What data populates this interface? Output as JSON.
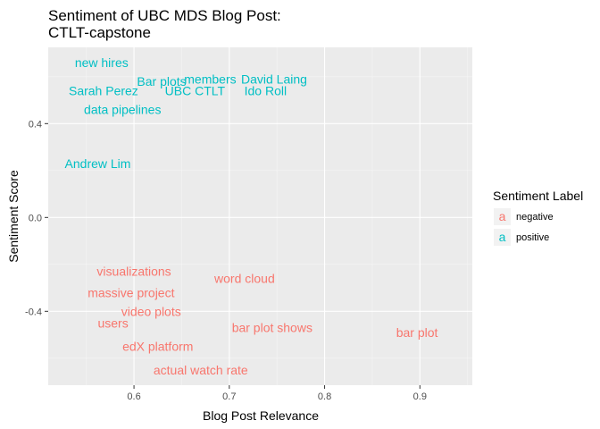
{
  "chart_data": {
    "type": "scatter",
    "title": [
      "Sentiment of UBC MDS Blog Post:",
      "CTLT-capstone"
    ],
    "xlabel": "Blog Post Relevance",
    "ylabel": "Sentiment Score",
    "xlim": [
      0.51,
      0.955
    ],
    "ylim": [
      -0.715,
      0.725
    ],
    "x_ticks": [
      0.6,
      0.7,
      0.8,
      0.9
    ],
    "x_tick_labels": [
      "0.6",
      "0.7",
      "0.8",
      "0.9"
    ],
    "y_ticks": [
      -0.4,
      0.0,
      0.4
    ],
    "y_tick_labels": [
      "-0.4",
      "0.0",
      "0.4"
    ],
    "grid": true,
    "legend": {
      "title": "Sentiment Label",
      "position": "right",
      "key_glyph": "a",
      "entries": [
        {
          "label": "negative",
          "color": "#F8766D"
        },
        {
          "label": "positive",
          "color": "#00BFC4"
        }
      ]
    },
    "series": [
      {
        "name": "negative",
        "color": "#F8766D",
        "points": [
          {
            "label": "visualizations",
            "x": 0.6,
            "y": -0.23
          },
          {
            "label": "massive project",
            "x": 0.597,
            "y": -0.32
          },
          {
            "label": "video plots",
            "x": 0.618,
            "y": -0.4
          },
          {
            "label": "users",
            "x": 0.578,
            "y": -0.45
          },
          {
            "label": "edX platform",
            "x": 0.625,
            "y": -0.55
          },
          {
            "label": "actual watch rate",
            "x": 0.67,
            "y": -0.65
          },
          {
            "label": "word cloud",
            "x": 0.716,
            "y": -0.26
          },
          {
            "label": "bar plot shows",
            "x": 0.745,
            "y": -0.47
          },
          {
            "label": "bar plot",
            "x": 0.897,
            "y": -0.49
          }
        ]
      },
      {
        "name": "positive",
        "color": "#00BFC4",
        "points": [
          {
            "label": "new hires",
            "x": 0.566,
            "y": 0.66
          },
          {
            "label": "Bar plots",
            "x": 0.629,
            "y": 0.58
          },
          {
            "label": "members",
            "x": 0.68,
            "y": 0.59
          },
          {
            "label": "David Laing",
            "x": 0.747,
            "y": 0.59
          },
          {
            "label": "Sarah Perez",
            "x": 0.568,
            "y": 0.54
          },
          {
            "label": "UBC CTLT",
            "x": 0.664,
            "y": 0.54
          },
          {
            "label": "Ido Roll",
            "x": 0.738,
            "y": 0.54
          },
          {
            "label": "data pipelines",
            "x": 0.588,
            "y": 0.46
          },
          {
            "label": "Andrew Lim",
            "x": 0.562,
            "y": 0.23
          }
        ]
      }
    ]
  }
}
